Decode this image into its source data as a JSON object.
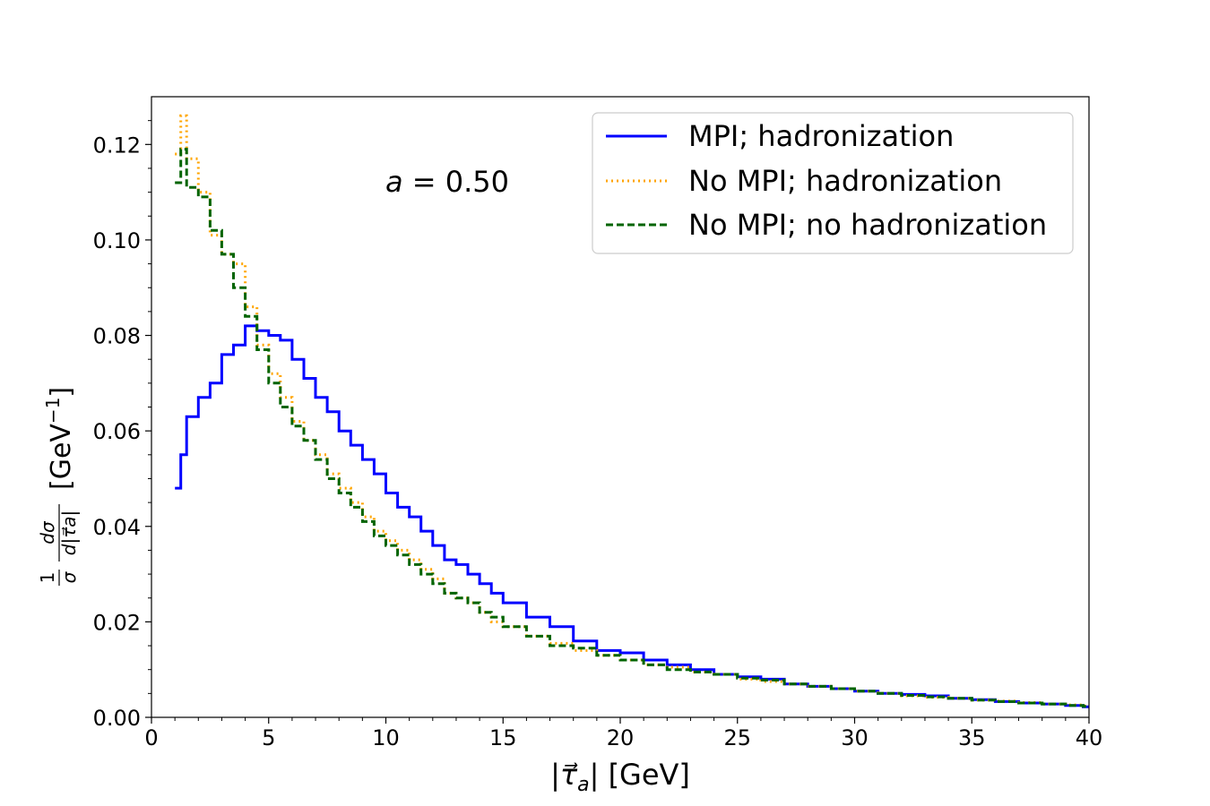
{
  "chart_data": {
    "type": "line",
    "title": "",
    "annotation": {
      "var": "a",
      "op": " = ",
      "value": "0.50"
    },
    "xlabel": "|τ⃗a| [GeV]",
    "xlabel_parts": {
      "pre": "|",
      "tau": "τ⃗",
      "sub": "a",
      "post": "| [GeV]"
    },
    "ylabel": "1/σ dσ/d|τ⃗a| [GeV−1]",
    "ylabel_parts": {
      "frac_top": "1",
      "frac_bottom": "σ",
      "dsigma": "dσ",
      "dtau": "d|τ⃗a|",
      "unit": "[GeV",
      "exp": "−1",
      "close": "]"
    },
    "xlim": [
      0,
      40
    ],
    "ylim": [
      0,
      0.13
    ],
    "xticks": [
      0,
      5,
      10,
      15,
      20,
      25,
      30,
      35,
      40
    ],
    "xtick_labels": [
      "0",
      "5",
      "10",
      "15",
      "20",
      "25",
      "30",
      "35",
      "40"
    ],
    "yticks": [
      0,
      0.02,
      0.04,
      0.06,
      0.08,
      0.1,
      0.12
    ],
    "ytick_labels": [
      "0.00",
      "0.02",
      "0.04",
      "0.06",
      "0.08",
      "0.10",
      "0.12"
    ],
    "grid": false,
    "legend_position": "top-right",
    "series": [
      {
        "name": "MPI; hadronization",
        "color": "#0000ff",
        "style": "solid",
        "points": [
          [
            1,
            0.048
          ],
          [
            1.25,
            0.055
          ],
          [
            1.5,
            0.063
          ],
          [
            2,
            0.067
          ],
          [
            2.5,
            0.07
          ],
          [
            3,
            0.076
          ],
          [
            3.5,
            0.078
          ],
          [
            4,
            0.082
          ],
          [
            4.5,
            0.081
          ],
          [
            5,
            0.08
          ],
          [
            5.5,
            0.079
          ],
          [
            6,
            0.075
          ],
          [
            6.5,
            0.071
          ],
          [
            7,
            0.067
          ],
          [
            7.5,
            0.064
          ],
          [
            8,
            0.06
          ],
          [
            8.5,
            0.057
          ],
          [
            9,
            0.054
          ],
          [
            9.5,
            0.051
          ],
          [
            10,
            0.047
          ],
          [
            10.5,
            0.044
          ],
          [
            11,
            0.042
          ],
          [
            11.5,
            0.039
          ],
          [
            12,
            0.036
          ],
          [
            12.5,
            0.033
          ],
          [
            13,
            0.032
          ],
          [
            13.5,
            0.03
          ],
          [
            14,
            0.028
          ],
          [
            14.5,
            0.026
          ],
          [
            15,
            0.024
          ],
          [
            16,
            0.021
          ],
          [
            17,
            0.019
          ],
          [
            18,
            0.016
          ],
          [
            19,
            0.014
          ],
          [
            20,
            0.0135
          ],
          [
            21,
            0.012
          ],
          [
            22,
            0.011
          ],
          [
            23,
            0.01
          ],
          [
            24,
            0.009
          ],
          [
            25,
            0.0085
          ],
          [
            26,
            0.008
          ],
          [
            27,
            0.007
          ],
          [
            28,
            0.0065
          ],
          [
            29,
            0.006
          ],
          [
            30,
            0.0055
          ],
          [
            31,
            0.005
          ],
          [
            32,
            0.0048
          ],
          [
            33,
            0.0045
          ],
          [
            34,
            0.004
          ],
          [
            35,
            0.0037
          ],
          [
            36,
            0.0033
          ],
          [
            37,
            0.003
          ],
          [
            38,
            0.0028
          ],
          [
            39,
            0.0025
          ],
          [
            39.75,
            0.0022
          ]
        ]
      },
      {
        "name": "No MPI; hadronization",
        "color": "#ffa500",
        "style": "dotted",
        "points": [
          [
            1,
            0.118
          ],
          [
            1.25,
            0.126
          ],
          [
            1.5,
            0.117
          ],
          [
            2,
            0.11
          ],
          [
            2.5,
            0.101
          ],
          [
            3,
            0.097
          ],
          [
            3.5,
            0.095
          ],
          [
            4,
            0.086
          ],
          [
            4.5,
            0.078
          ],
          [
            5,
            0.072
          ],
          [
            5.5,
            0.067
          ],
          [
            6,
            0.062
          ],
          [
            6.5,
            0.058
          ],
          [
            7,
            0.055
          ],
          [
            7.5,
            0.051
          ],
          [
            8,
            0.048
          ],
          [
            8.5,
            0.045
          ],
          [
            9,
            0.042
          ],
          [
            9.5,
            0.039
          ],
          [
            10,
            0.037
          ],
          [
            10.5,
            0.035
          ],
          [
            11,
            0.033
          ],
          [
            11.5,
            0.031
          ],
          [
            12,
            0.029
          ],
          [
            12.5,
            0.026
          ],
          [
            13,
            0.025
          ],
          [
            13.5,
            0.024
          ],
          [
            14,
            0.022
          ],
          [
            14.5,
            0.02
          ],
          [
            15,
            0.019
          ],
          [
            16,
            0.017
          ],
          [
            17,
            0.0155
          ],
          [
            18,
            0.014
          ],
          [
            19,
            0.013
          ],
          [
            20,
            0.012
          ],
          [
            21,
            0.011
          ],
          [
            22,
            0.0105
          ],
          [
            23,
            0.0095
          ],
          [
            24,
            0.009
          ],
          [
            25,
            0.008
          ],
          [
            26,
            0.0075
          ],
          [
            27,
            0.007
          ],
          [
            28,
            0.0065
          ],
          [
            29,
            0.006
          ],
          [
            30,
            0.0055
          ],
          [
            31,
            0.005
          ],
          [
            32,
            0.0045
          ],
          [
            33,
            0.0042
          ],
          [
            34,
            0.004
          ],
          [
            35,
            0.0036
          ],
          [
            36,
            0.0034
          ],
          [
            37,
            0.0031
          ],
          [
            38,
            0.0028
          ],
          [
            39,
            0.0026
          ],
          [
            39.75,
            0.0024
          ]
        ]
      },
      {
        "name": "No MPI; no hadronization",
        "color": "#006400",
        "style": "dashed",
        "points": [
          [
            1,
            0.112
          ],
          [
            1.25,
            0.119
          ],
          [
            1.5,
            0.111
          ],
          [
            2,
            0.109
          ],
          [
            2.5,
            0.102
          ],
          [
            3,
            0.097
          ],
          [
            3.5,
            0.09
          ],
          [
            4,
            0.084
          ],
          [
            4.5,
            0.077
          ],
          [
            5,
            0.07
          ],
          [
            5.5,
            0.065
          ],
          [
            6,
            0.061
          ],
          [
            6.5,
            0.058
          ],
          [
            7,
            0.054
          ],
          [
            7.5,
            0.05
          ],
          [
            8,
            0.047
          ],
          [
            8.5,
            0.044
          ],
          [
            9,
            0.041
          ],
          [
            9.5,
            0.038
          ],
          [
            10,
            0.036
          ],
          [
            10.5,
            0.034
          ],
          [
            11,
            0.032
          ],
          [
            11.5,
            0.03
          ],
          [
            12,
            0.028
          ],
          [
            12.5,
            0.026
          ],
          [
            13,
            0.025
          ],
          [
            13.5,
            0.024
          ],
          [
            14,
            0.022
          ],
          [
            14.5,
            0.021
          ],
          [
            15,
            0.019
          ],
          [
            16,
            0.017
          ],
          [
            17,
            0.015
          ],
          [
            18,
            0.0145
          ],
          [
            19,
            0.013
          ],
          [
            20,
            0.012
          ],
          [
            21,
            0.011
          ],
          [
            22,
            0.01
          ],
          [
            23,
            0.0095
          ],
          [
            24,
            0.009
          ],
          [
            25,
            0.0082
          ],
          [
            26,
            0.0078
          ],
          [
            27,
            0.007
          ],
          [
            28,
            0.0065
          ],
          [
            29,
            0.006
          ],
          [
            30,
            0.0055
          ],
          [
            31,
            0.005
          ],
          [
            32,
            0.0046
          ],
          [
            33,
            0.0043
          ],
          [
            34,
            0.004
          ],
          [
            35,
            0.0036
          ],
          [
            36,
            0.0033
          ],
          [
            37,
            0.003
          ],
          [
            38,
            0.0028
          ],
          [
            39,
            0.0025
          ],
          [
            39.75,
            0.0023
          ]
        ]
      }
    ]
  }
}
